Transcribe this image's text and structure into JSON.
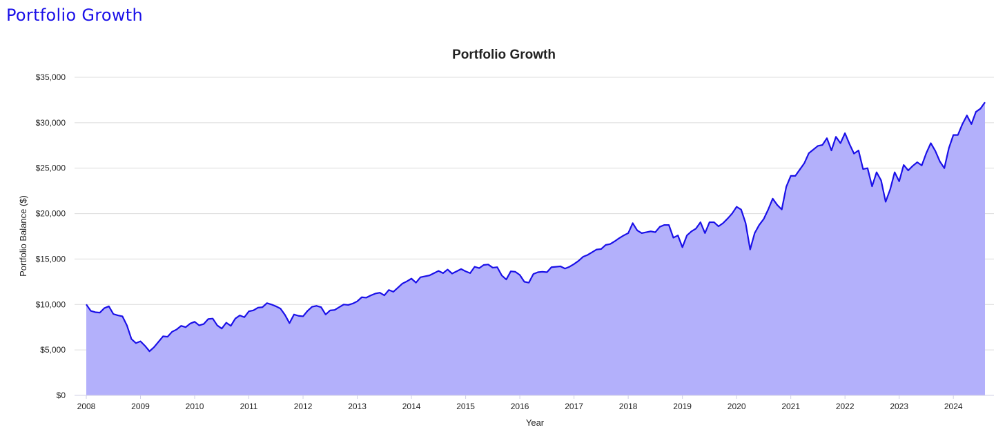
{
  "page": {
    "heading": "Portfolio Growth"
  },
  "colors": {
    "heading": "#1a10e8",
    "line": "#1a10e8",
    "area": "#b3b0fb",
    "grid": "#dcdcdc",
    "axis": "#cfcfe6",
    "text": "#222222"
  },
  "chart_data": {
    "type": "area",
    "title": "Portfolio Growth",
    "xlabel": "Year",
    "ylabel": "Portfolio Balance ($)",
    "xlim": [
      2008.0,
      2024.5833
    ],
    "ylim": [
      0,
      35000
    ],
    "grid": true,
    "x_ticks": [
      "2008",
      "2009",
      "2010",
      "2011",
      "2012",
      "2013",
      "2014",
      "2015",
      "2016",
      "2017",
      "2018",
      "2019",
      "2020",
      "2021",
      "2022",
      "2023",
      "2024"
    ],
    "y_ticks": [
      "$0",
      "$5,000",
      "$10,000",
      "$15,000",
      "$20,000",
      "$25,000",
      "$30,000",
      "$35,000"
    ],
    "series": [
      {
        "name": "Portfolio Balance",
        "x_start": 2008.0,
        "x_step": 0.0833333,
        "values": [
          10000,
          9300,
          9150,
          9100,
          9600,
          9800,
          8950,
          8800,
          8700,
          7700,
          6200,
          5750,
          5950,
          5450,
          4850,
          5300,
          5900,
          6500,
          6450,
          7000,
          7250,
          7650,
          7500,
          7900,
          8100,
          7700,
          7850,
          8400,
          8450,
          7700,
          7350,
          8000,
          7650,
          8450,
          8800,
          8600,
          9250,
          9350,
          9650,
          9700,
          10150,
          10000,
          9800,
          9550,
          8850,
          7950,
          8900,
          8750,
          8700,
          9300,
          9750,
          9850,
          9700,
          8900,
          9350,
          9400,
          9700,
          10000,
          9950,
          10100,
          10350,
          10800,
          10750,
          11000,
          11200,
          11300,
          11000,
          11600,
          11400,
          11850,
          12300,
          12550,
          12850,
          12400,
          13000,
          13100,
          13200,
          13450,
          13700,
          13450,
          13850,
          13400,
          13650,
          13900,
          13650,
          13450,
          14150,
          14000,
          14350,
          14400,
          14050,
          14100,
          13200,
          12750,
          13650,
          13600,
          13250,
          12500,
          12400,
          13350,
          13550,
          13600,
          13550,
          14100,
          14150,
          14200,
          13950,
          14150,
          14450,
          14800,
          15250,
          15450,
          15750,
          16050,
          16100,
          16550,
          16650,
          16950,
          17300,
          17600,
          17850,
          18950,
          18150,
          17850,
          17950,
          18050,
          17950,
          18550,
          18750,
          18750,
          17350,
          17600,
          16300,
          17600,
          18050,
          18350,
          19050,
          17850,
          19050,
          19050,
          18600,
          18950,
          19450,
          20000,
          20750,
          20450,
          18950,
          16050,
          17850,
          18750,
          19400,
          20450,
          21650,
          20950,
          20450,
          22950,
          24150,
          24150,
          24850,
          25550,
          26650,
          27050,
          27450,
          27550,
          28300,
          26950,
          28450,
          27750,
          28850,
          27650,
          26600,
          26950,
          24900,
          25000,
          23000,
          24550,
          23650,
          21300,
          22650,
          24550,
          23550,
          25350,
          24750,
          25250,
          25650,
          25300,
          26650,
          27750,
          26900,
          25750,
          25000,
          27200,
          28650,
          28650,
          29850,
          30800,
          29850,
          31200,
          31550,
          32250
        ]
      }
    ]
  }
}
